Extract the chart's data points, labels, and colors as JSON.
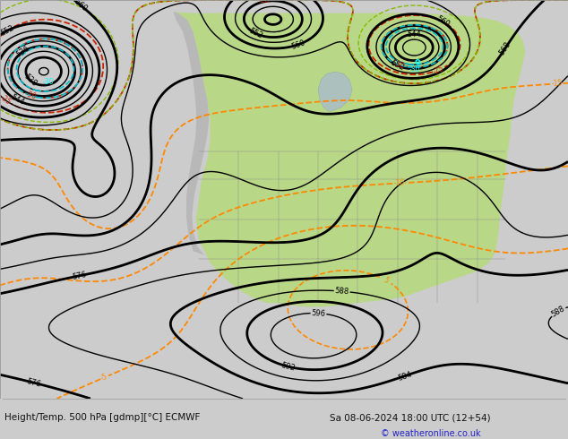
{
  "title_left": "Height/Temp. 500 hPa [gdmp][°C] ECMWF",
  "title_right": "Sa 08-06-2024 18:00 UTC (12+54)",
  "copyright": "© weatheronline.co.uk",
  "fig_width": 6.34,
  "fig_height": 4.9,
  "dpi": 100,
  "footer_bg": "#cccccc",
  "map_ocean_color": "#c8d8e8",
  "map_land_green": "#b8d888",
  "map_land_gray": "#b0b0b0",
  "geop_color": "#000000",
  "temp_orange_color": "#ff8800",
  "temp_red_color": "#cc2200",
  "temp_cyan_color": "#00bbcc",
  "temp_green_color": "#88bb00",
  "footer_color": "#111111",
  "copyright_color": "#2222cc",
  "footer_fontsize": 7.5,
  "copyright_fontsize": 7.0
}
